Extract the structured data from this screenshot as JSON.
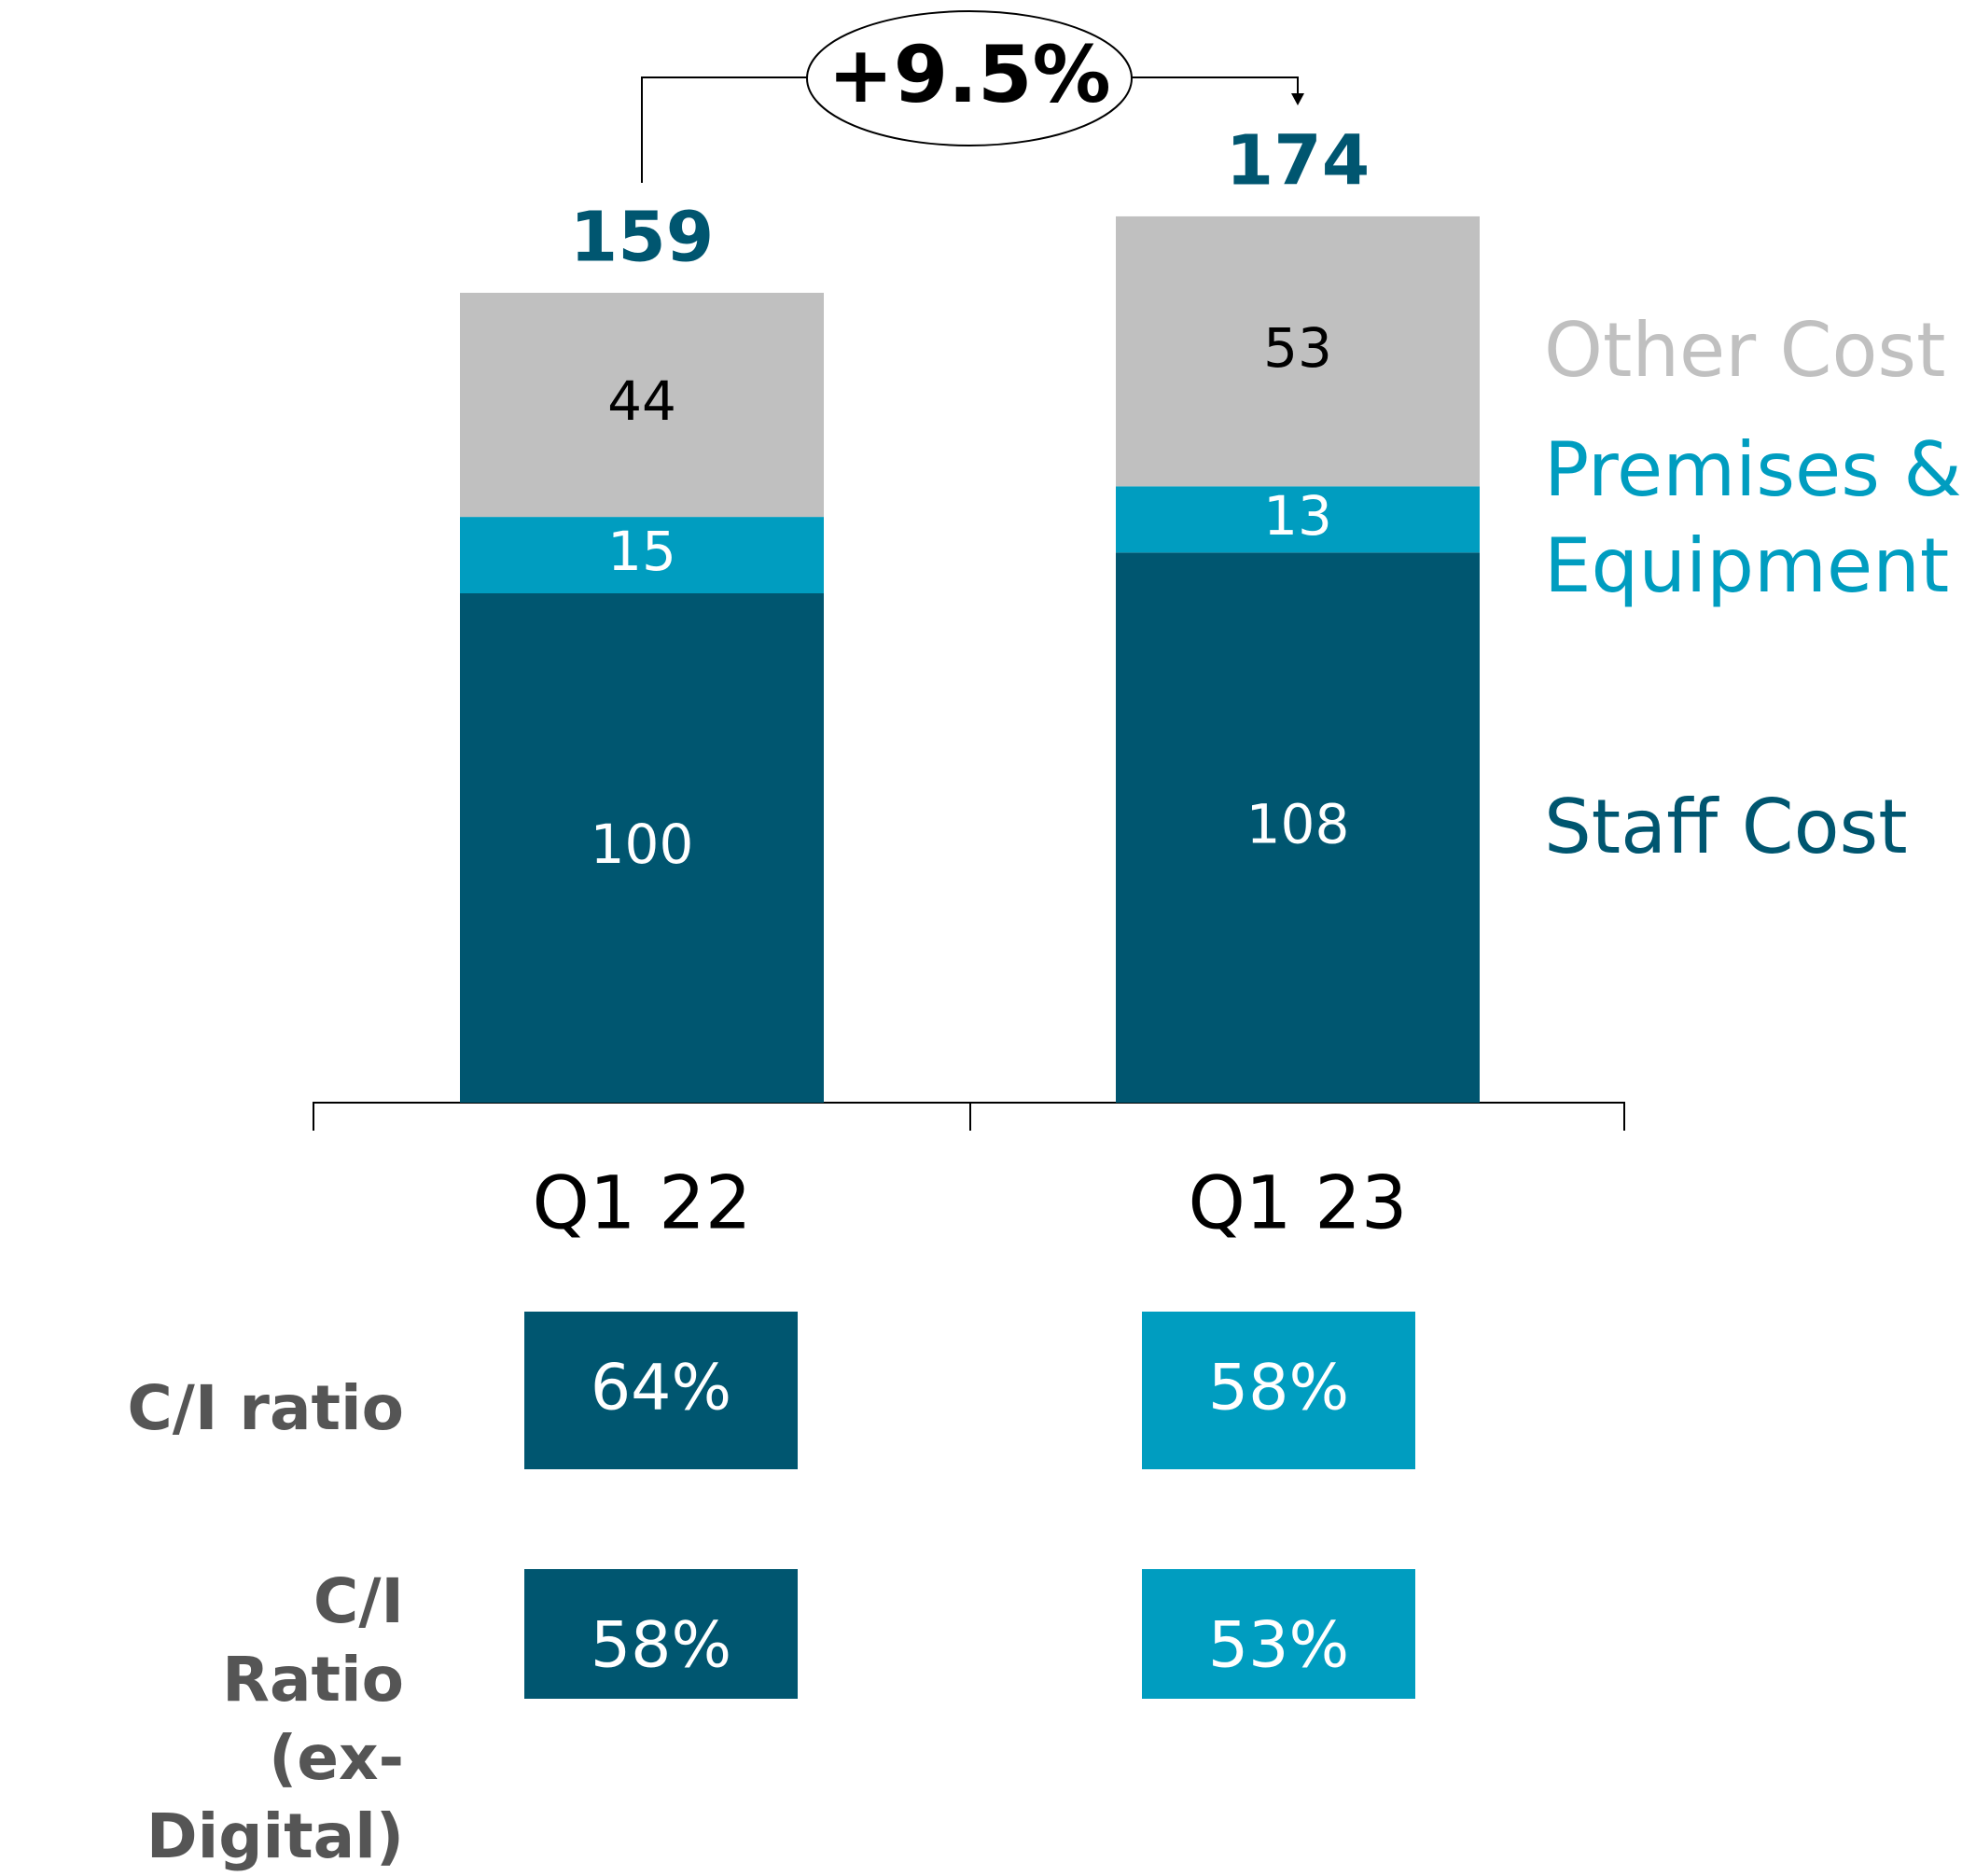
{
  "chart_data": {
    "type": "stacked_bar",
    "categories": [
      "Q1 22",
      "Q1 23"
    ],
    "series": [
      {
        "name": "Staff Cost",
        "color": "#005670",
        "label_color": "#ffffff",
        "values": [
          100,
          108
        ]
      },
      {
        "name": "Premises & Equipment",
        "color": "#009dc0",
        "label_color": "#ffffff",
        "values": [
          15,
          13
        ]
      },
      {
        "name": "Other Cost",
        "color": "#c0c0c0",
        "label_color": "#000000",
        "values": [
          44,
          53
        ]
      }
    ],
    "totals": [
      159,
      174
    ],
    "totals_color": "#005670",
    "annotation": "+9.5%",
    "ratios": {
      "colors": [
        "#005670",
        "#009dc0"
      ],
      "rows": [
        {
          "name": "C/I ratio",
          "values": [
            64,
            58
          ],
          "value_labels": [
            "64%",
            "58%"
          ]
        },
        {
          "name": "C/I Ratio (ex-Digital)",
          "values": [
            58,
            53
          ],
          "value_labels": [
            "58%",
            "53%"
          ]
        }
      ]
    }
  }
}
